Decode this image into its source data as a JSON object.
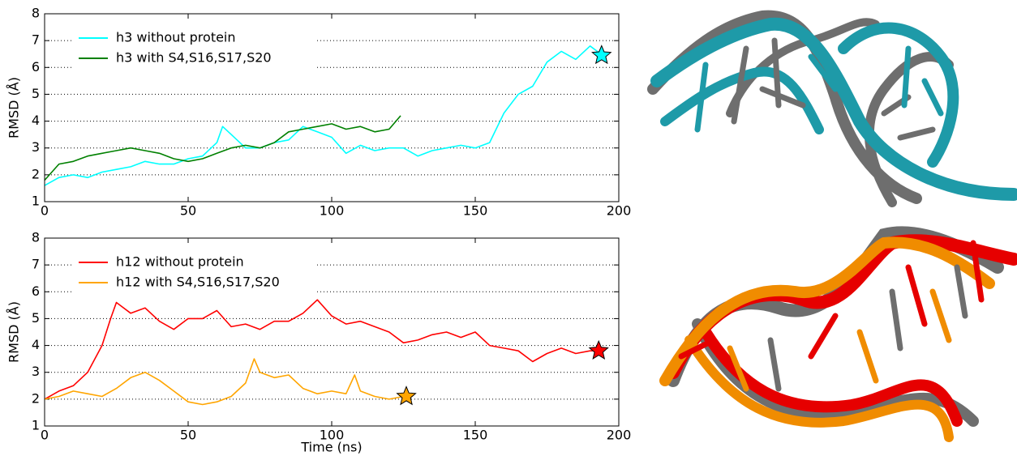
{
  "chart_data": [
    {
      "type": "line",
      "ylabel": "RMSD (Å)",
      "xlim": [
        0,
        200
      ],
      "ylim": [
        1,
        8
      ],
      "xticks": [
        0,
        50,
        100,
        150,
        200
      ],
      "yticks": [
        1,
        2,
        3,
        4,
        5,
        6,
        7,
        8
      ],
      "grid": true,
      "legend": "upper left",
      "series": [
        {
          "name": "h3 without protein",
          "color": "#00ffff",
          "x": [
            0,
            5,
            10,
            15,
            20,
            25,
            30,
            35,
            40,
            45,
            50,
            55,
            60,
            62,
            65,
            70,
            75,
            80,
            85,
            90,
            95,
            100,
            105,
            110,
            115,
            120,
            125,
            130,
            135,
            140,
            145,
            150,
            155,
            160,
            165,
            170,
            175,
            180,
            185,
            190,
            195
          ],
          "values": [
            1.6,
            1.9,
            2.0,
            1.9,
            2.1,
            2.2,
            2.3,
            2.5,
            2.4,
            2.4,
            2.6,
            2.7,
            3.2,
            3.8,
            3.5,
            3.0,
            3.0,
            3.2,
            3.3,
            3.8,
            3.6,
            3.4,
            2.8,
            3.1,
            2.9,
            3.0,
            3.0,
            2.7,
            2.9,
            3.0,
            3.1,
            3.0,
            3.2,
            4.3,
            5.0,
            5.3,
            6.2,
            6.6,
            6.3,
            6.8,
            6.4
          ],
          "marker_x": 194,
          "marker_y": 6.45
        },
        {
          "name": "h3 with S4,S16,S17,S20",
          "color": "#008000",
          "x": [
            0,
            5,
            10,
            15,
            20,
            25,
            30,
            35,
            40,
            45,
            50,
            55,
            60,
            65,
            70,
            75,
            80,
            85,
            90,
            95,
            100,
            105,
            110,
            115,
            120,
            124
          ],
          "values": [
            1.8,
            2.4,
            2.5,
            2.7,
            2.8,
            2.9,
            3.0,
            2.9,
            2.8,
            2.6,
            2.5,
            2.6,
            2.8,
            3.0,
            3.1,
            3.0,
            3.2,
            3.6,
            3.7,
            3.8,
            3.9,
            3.7,
            3.8,
            3.6,
            3.7,
            4.2
          ]
        }
      ]
    },
    {
      "type": "line",
      "ylabel": "RMSD (Å)",
      "xlabel": "Time (ns)",
      "xlim": [
        0,
        200
      ],
      "ylim": [
        1,
        8
      ],
      "xticks": [
        0,
        50,
        100,
        150,
        200
      ],
      "yticks": [
        1,
        2,
        3,
        4,
        5,
        6,
        7,
        8
      ],
      "grid": true,
      "legend": "upper left",
      "series": [
        {
          "name": "h12 without protein",
          "color": "#ff0000",
          "x": [
            0,
            5,
            10,
            15,
            20,
            23,
            25,
            30,
            35,
            40,
            45,
            50,
            55,
            60,
            65,
            70,
            75,
            80,
            85,
            90,
            95,
            100,
            105,
            110,
            115,
            120,
            125,
            130,
            135,
            140,
            145,
            150,
            155,
            160,
            165,
            170,
            175,
            180,
            185,
            190,
            193
          ],
          "values": [
            2.0,
            2.3,
            2.5,
            3.0,
            4.0,
            5.0,
            5.6,
            5.2,
            5.4,
            4.9,
            4.6,
            5.0,
            5.0,
            5.3,
            4.7,
            4.8,
            4.6,
            4.9,
            4.9,
            5.2,
            5.7,
            5.1,
            4.8,
            4.9,
            4.7,
            4.5,
            4.1,
            4.2,
            4.4,
            4.5,
            4.3,
            4.5,
            4.0,
            3.9,
            3.8,
            3.4,
            3.7,
            3.9,
            3.7,
            3.8,
            3.8
          ],
          "marker_x": 193,
          "marker_y": 3.8
        },
        {
          "name": "h12 with S4,S16,S17,S20",
          "color": "#ffa500",
          "x": [
            0,
            5,
            10,
            15,
            20,
            25,
            30,
            35,
            40,
            45,
            50,
            55,
            60,
            65,
            70,
            73,
            75,
            80,
            85,
            90,
            95,
            100,
            105,
            108,
            110,
            115,
            120,
            125
          ],
          "values": [
            2.0,
            2.1,
            2.3,
            2.2,
            2.1,
            2.4,
            2.8,
            3.0,
            2.7,
            2.3,
            1.9,
            1.8,
            1.9,
            2.1,
            2.6,
            3.5,
            3.0,
            2.8,
            2.9,
            2.4,
            2.2,
            2.3,
            2.2,
            2.9,
            2.3,
            2.1,
            2.0,
            2.1
          ],
          "marker_x": 126,
          "marker_y": 2.1
        }
      ]
    }
  ]
}
